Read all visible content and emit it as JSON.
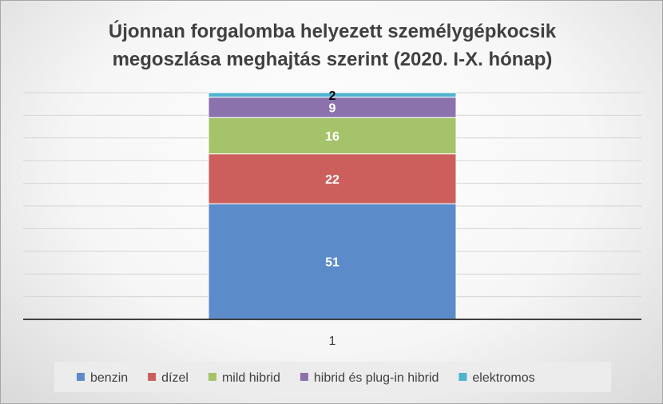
{
  "chart_data": {
    "type": "bar",
    "stacked": true,
    "title": "Újonnan forgalomba helyezett személygépkocsik megoszlása meghajtás szerint (2020. I-X. hónap)",
    "title_lines": [
      "Újonnan forgalomba helyezett személygépkocsik",
      "megoszlása meghajtás szerint (2020. I-X. hónap)"
    ],
    "categories": [
      "1"
    ],
    "series": [
      {
        "name": "benzin",
        "values": [
          51
        ],
        "color": "#5b8cc9",
        "label_color": "#ffffff"
      },
      {
        "name": "dízel",
        "values": [
          22
        ],
        "color": "#cc5f5c",
        "label_color": "#ffffff"
      },
      {
        "name": "mild hibrid",
        "values": [
          16
        ],
        "color": "#a5c36a",
        "label_color": "#ffffff"
      },
      {
        "name": "hibrid és plug-in hibrid",
        "values": [
          9
        ],
        "color": "#8b72ad",
        "label_color": "#ffffff"
      },
      {
        "name": "elektromos",
        "values": [
          2
        ],
        "color": "#4fb3cf",
        "label_color": "#000000"
      }
    ],
    "ylim": [
      0,
      100
    ],
    "grid": true,
    "legend_position": "bottom"
  }
}
